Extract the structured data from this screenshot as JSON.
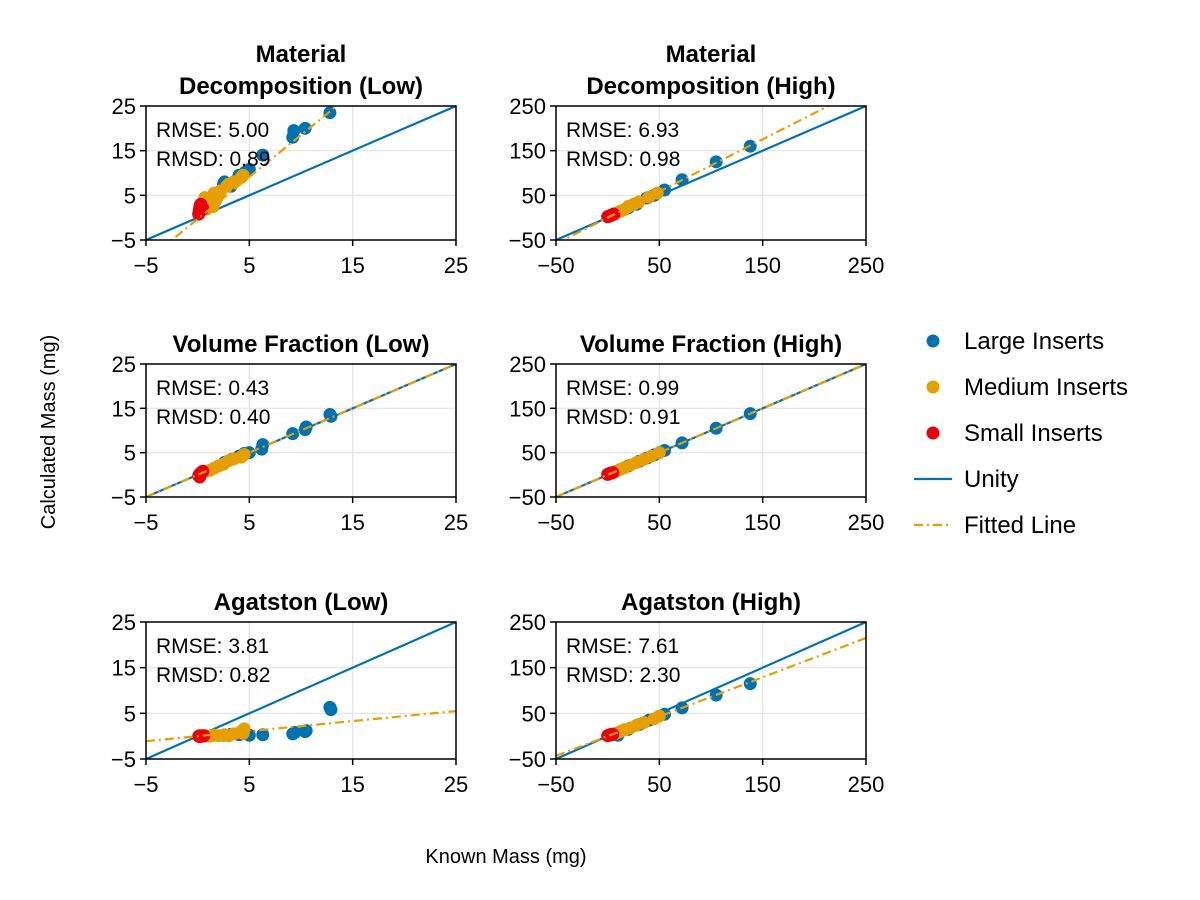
{
  "figure": {
    "xlabel": "Known Mass (mg)",
    "ylabel": "Calculated Mass (mg)"
  },
  "legend": {
    "placement": "right",
    "items": [
      {
        "label": "Large Inserts",
        "kind": "marker",
        "color": "#0072b2"
      },
      {
        "label": "Medium Inserts",
        "kind": "marker",
        "color": "#e69f00"
      },
      {
        "label": "Small Inserts",
        "kind": "marker",
        "color": "#e8000b"
      },
      {
        "label": "Unity",
        "kind": "line",
        "color": "#0072b2"
      },
      {
        "label": "Fitted Line",
        "kind": "dashdot",
        "color": "#e69f00"
      }
    ]
  },
  "chart_data": [
    {
      "type": "scatter",
      "title": [
        "Material",
        "Decomposition (Low)"
      ],
      "stats": [
        "RMSE: 5.00",
        "RMSD: 0.89"
      ],
      "xlim": [
        -5,
        25
      ],
      "ylim": [
        -5,
        25
      ],
      "xticks": [
        "-5",
        "5",
        "15",
        "25"
      ],
      "yticks": [
        "-5",
        "5",
        "15",
        "25"
      ],
      "xtickvals": [
        -5,
        5,
        15,
        25
      ],
      "ytickvals": [
        -5,
        5,
        15,
        25
      ],
      "grid": true,
      "fit": {
        "slope": 1.88,
        "intercept": -0.3
      },
      "series": [
        {
          "name": "Large Inserts",
          "color": "#0072b2",
          "points": [
            [
              2.5,
              7.5
            ],
            [
              2.6,
              8.0
            ],
            [
              3.8,
              8.5
            ],
            [
              4.0,
              9.5
            ],
            [
              4.6,
              10.2
            ],
            [
              5.0,
              10.8
            ],
            [
              6.3,
              14.0
            ],
            [
              9.2,
              18.0
            ],
            [
              9.3,
              19.5
            ],
            [
              10.4,
              20.0
            ],
            [
              12.8,
              23.5
            ],
            [
              2.0,
              5.5
            ],
            [
              3.2,
              7.0
            ]
          ]
        },
        {
          "name": "Medium Inserts",
          "color": "#e69f00",
          "points": [
            [
              0.7,
              4.5
            ],
            [
              1.0,
              3.0
            ],
            [
              1.3,
              3.5
            ],
            [
              1.6,
              5.5
            ],
            [
              1.8,
              4.0
            ],
            [
              2.2,
              6.0
            ],
            [
              2.8,
              7.0
            ],
            [
              3.0,
              7.5
            ],
            [
              3.5,
              8.0
            ],
            [
              4.2,
              9.0
            ],
            [
              4.4,
              9.5
            ],
            [
              0.9,
              2.0
            ],
            [
              1.5,
              2.5
            ]
          ]
        },
        {
          "name": "Small Inserts",
          "color": "#e8000b",
          "points": [
            [
              0.1,
              0.8
            ],
            [
              0.15,
              1.5
            ],
            [
              0.2,
              2.2
            ],
            [
              0.25,
              2.8
            ],
            [
              0.3,
              3.0
            ],
            [
              0.35,
              2.5
            ],
            [
              0.4,
              1.8
            ],
            [
              0.5,
              2.0
            ]
          ]
        }
      ]
    },
    {
      "type": "scatter",
      "title": [
        "Material",
        "Decomposition (High)"
      ],
      "stats": [
        "RMSE: 6.93",
        "RMSD: 0.98"
      ],
      "xlim": [
        -50,
        250
      ],
      "ylim": [
        -50,
        250
      ],
      "xticks": [
        "-50",
        "50",
        "150",
        "250"
      ],
      "yticks": [
        "-50",
        "50",
        "150",
        "250"
      ],
      "xtickvals": [
        -50,
        50,
        150,
        250
      ],
      "ytickvals": [
        -50,
        50,
        150,
        250
      ],
      "grid": true,
      "fit": {
        "slope": 1.17,
        "intercept": 0
      },
      "series": [
        {
          "name": "Large Inserts",
          "color": "#0072b2",
          "points": [
            [
              20,
              22
            ],
            [
              28,
              30
            ],
            [
              38,
              44
            ],
            [
              45,
              50
            ],
            [
              55,
              62
            ],
            [
              72,
              85
            ],
            [
              105,
              125
            ],
            [
              138,
              160
            ]
          ]
        },
        {
          "name": "Medium Inserts",
          "color": "#e69f00",
          "points": [
            [
              8,
              10
            ],
            [
              12,
              14
            ],
            [
              16,
              18
            ],
            [
              20,
              25
            ],
            [
              25,
              30
            ],
            [
              30,
              35
            ],
            [
              40,
              46
            ],
            [
              48,
              55
            ]
          ]
        },
        {
          "name": "Small Inserts",
          "color": "#e8000b",
          "points": [
            [
              0,
              2
            ],
            [
              1,
              3
            ],
            [
              2,
              4
            ],
            [
              3,
              5
            ],
            [
              4,
              6
            ],
            [
              5,
              7
            ],
            [
              6,
              8
            ]
          ]
        }
      ]
    },
    {
      "type": "scatter",
      "title": [
        "Volume Fraction (Low)"
      ],
      "stats": [
        "RMSE: 0.43",
        "RMSD: 0.40"
      ],
      "xlim": [
        -5,
        25
      ],
      "ylim": [
        -5,
        25
      ],
      "xticks": [
        "-5",
        "5",
        "15",
        "25"
      ],
      "yticks": [
        "-5",
        "5",
        "15",
        "25"
      ],
      "xtickvals": [
        -5,
        5,
        15,
        25
      ],
      "ytickvals": [
        -5,
        5,
        15,
        25
      ],
      "grid": true,
      "fit": {
        "slope": 1.0,
        "intercept": 0
      },
      "series": [
        {
          "name": "Large Inserts",
          "color": "#0072b2",
          "points": [
            [
              2.6,
              2.8
            ],
            [
              3.3,
              3.5
            ],
            [
              4.0,
              4.2
            ],
            [
              4.5,
              4.8
            ],
            [
              5.0,
              5.0
            ],
            [
              6.3,
              6.8
            ],
            [
              6.2,
              5.8
            ],
            [
              9.2,
              9.3
            ],
            [
              10.4,
              10.2
            ],
            [
              10.5,
              10.8
            ],
            [
              12.9,
              13.2
            ],
            [
              12.8,
              13.6
            ]
          ]
        },
        {
          "name": "Medium Inserts",
          "color": "#e69f00",
          "points": [
            [
              0.8,
              0.8
            ],
            [
              1.2,
              1.0
            ],
            [
              1.6,
              1.5
            ],
            [
              2.0,
              2.0
            ],
            [
              2.5,
              2.4
            ],
            [
              3.0,
              3.2
            ],
            [
              3.5,
              3.6
            ],
            [
              4.2,
              4.0
            ],
            [
              4.5,
              4.6
            ]
          ]
        },
        {
          "name": "Small Inserts",
          "color": "#e8000b",
          "points": [
            [
              0.1,
              -0.2
            ],
            [
              0.2,
              0.2
            ],
            [
              0.3,
              0.4
            ],
            [
              0.4,
              0.6
            ],
            [
              0.5,
              0.8
            ],
            [
              0.2,
              -0.5
            ]
          ]
        }
      ]
    },
    {
      "type": "scatter",
      "title": [
        "Volume Fraction (High)"
      ],
      "stats": [
        "RMSE: 0.99",
        "RMSD: 0.91"
      ],
      "xlim": [
        -50,
        250
      ],
      "ylim": [
        -50,
        250
      ],
      "xticks": [
        "-50",
        "50",
        "150",
        "250"
      ],
      "yticks": [
        "-50",
        "50",
        "150",
        "250"
      ],
      "xtickvals": [
        -50,
        50,
        150,
        250
      ],
      "ytickvals": [
        -50,
        50,
        150,
        250
      ],
      "grid": true,
      "fit": {
        "slope": 1.0,
        "intercept": 0
      },
      "series": [
        {
          "name": "Large Inserts",
          "color": "#0072b2",
          "points": [
            [
              20,
              20
            ],
            [
              30,
              30
            ],
            [
              38,
              38
            ],
            [
              45,
              45
            ],
            [
              55,
              55
            ],
            [
              72,
              72
            ],
            [
              105,
              105
            ],
            [
              138,
              138
            ]
          ]
        },
        {
          "name": "Medium Inserts",
          "color": "#e69f00",
          "points": [
            [
              8,
              8
            ],
            [
              12,
              12
            ],
            [
              16,
              16
            ],
            [
              22,
              22
            ],
            [
              28,
              28
            ],
            [
              35,
              35
            ],
            [
              42,
              42
            ],
            [
              50,
              50
            ]
          ]
        },
        {
          "name": "Small Inserts",
          "color": "#e8000b",
          "points": [
            [
              0,
              1
            ],
            [
              1,
              2
            ],
            [
              2,
              3
            ],
            [
              3,
              4
            ],
            [
              4,
              4
            ],
            [
              5,
              5
            ]
          ]
        }
      ]
    },
    {
      "type": "scatter",
      "title": [
        "Agatston (Low)"
      ],
      "stats": [
        "RMSE: 3.81",
        "RMSD: 0.82"
      ],
      "xlim": [
        -5,
        25
      ],
      "ylim": [
        -5,
        25
      ],
      "xticks": [
        "-5",
        "5",
        "15",
        "25"
      ],
      "yticks": [
        "-5",
        "5",
        "15",
        "25"
      ],
      "xtickvals": [
        -5,
        5,
        15,
        25
      ],
      "ytickvals": [
        -5,
        5,
        15,
        25
      ],
      "grid": true,
      "fit": {
        "slope": 0.22,
        "intercept": 0
      },
      "series": [
        {
          "name": "Large Inserts",
          "color": "#0072b2",
          "points": [
            [
              2.5,
              0.2
            ],
            [
              3.2,
              0.4
            ],
            [
              4.0,
              0.3
            ],
            [
              4.6,
              0.6
            ],
            [
              5.0,
              0.2
            ],
            [
              6.3,
              0.3
            ],
            [
              9.2,
              0.5
            ],
            [
              9.4,
              0.8
            ],
            [
              10.4,
              1.0
            ],
            [
              10.5,
              1.2
            ],
            [
              12.9,
              5.8
            ],
            [
              12.8,
              6.3
            ]
          ]
        },
        {
          "name": "Medium Inserts",
          "color": "#e69f00",
          "points": [
            [
              0.8,
              0.1
            ],
            [
              1.2,
              0.0
            ],
            [
              1.6,
              0.2
            ],
            [
              2.0,
              0.1
            ],
            [
              2.6,
              0.3
            ],
            [
              3.0,
              0.1
            ],
            [
              3.5,
              0.5
            ],
            [
              4.2,
              1.0
            ],
            [
              4.5,
              1.6
            ],
            [
              4.4,
              0.6
            ]
          ]
        },
        {
          "name": "Small Inserts",
          "color": "#e8000b",
          "points": [
            [
              0.1,
              0.0
            ],
            [
              0.2,
              0.1
            ],
            [
              0.3,
              0.0
            ],
            [
              0.4,
              0.1
            ],
            [
              0.5,
              0.0
            ],
            [
              0.6,
              0.1
            ],
            [
              0.2,
              -0.1
            ]
          ]
        }
      ]
    },
    {
      "type": "scatter",
      "title": [
        "Agatston (High)"
      ],
      "stats": [
        "RMSE: 7.61",
        "RMSD: 2.30"
      ],
      "xlim": [
        -50,
        250
      ],
      "ylim": [
        -50,
        250
      ],
      "xticks": [
        "-50",
        "50",
        "150",
        "250"
      ],
      "yticks": [
        "-50",
        "50",
        "150",
        "250"
      ],
      "xtickvals": [
        -50,
        50,
        150,
        250
      ],
      "ytickvals": [
        -50,
        50,
        150,
        250
      ],
      "grid": true,
      "fit": {
        "slope": 0.86,
        "intercept": 0
      },
      "series": [
        {
          "name": "Large Inserts",
          "color": "#0072b2",
          "points": [
            [
              10,
              2
            ],
            [
              20,
              15
            ],
            [
              30,
              25
            ],
            [
              40,
              35
            ],
            [
              55,
              48
            ],
            [
              72,
              62
            ],
            [
              105,
              90
            ],
            [
              138,
              115
            ]
          ]
        },
        {
          "name": "Medium Inserts",
          "color": "#e69f00",
          "points": [
            [
              8,
              6
            ],
            [
              12,
              10
            ],
            [
              16,
              14
            ],
            [
              22,
              18
            ],
            [
              28,
              24
            ],
            [
              35,
              30
            ],
            [
              45,
              38
            ],
            [
              50,
              44
            ]
          ]
        },
        {
          "name": "Small Inserts",
          "color": "#e8000b",
          "points": [
            [
              0,
              1
            ],
            [
              1,
              2
            ],
            [
              2,
              3
            ],
            [
              3,
              3
            ],
            [
              4,
              4
            ],
            [
              5,
              4
            ]
          ]
        }
      ]
    }
  ]
}
